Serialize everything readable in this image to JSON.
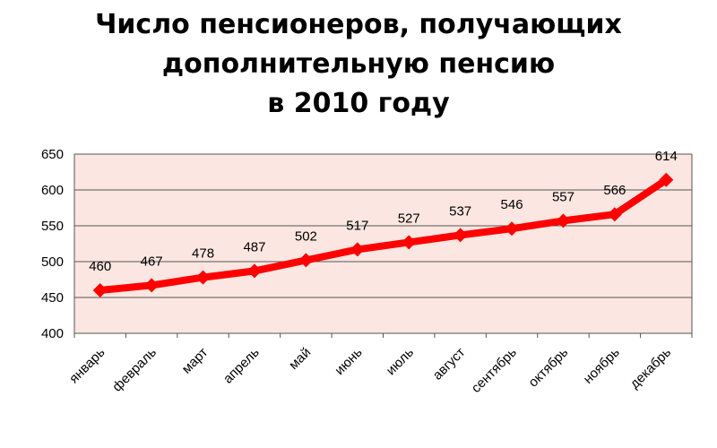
{
  "chart_data": {
    "type": "line",
    "title_lines": [
      "Число пенсионеров, получающих",
      "дополнительную пенсию",
      "в 2010 году"
    ],
    "categories": [
      "январь",
      "февраль",
      "март",
      "апрель",
      "май",
      "июнь",
      "июль",
      "август",
      "сентябрь",
      "октябрь",
      "ноябрь",
      "декабрь"
    ],
    "values": [
      460,
      467,
      478,
      487,
      502,
      517,
      527,
      537,
      546,
      557,
      566,
      614
    ],
    "ylim": [
      400,
      650
    ],
    "yticks": [
      400,
      450,
      500,
      550,
      600,
      650
    ],
    "grid": true,
    "legend": "none",
    "line_color": "#ff0000",
    "plot_background": "#fbe6e1",
    "grid_color": "#555555"
  }
}
